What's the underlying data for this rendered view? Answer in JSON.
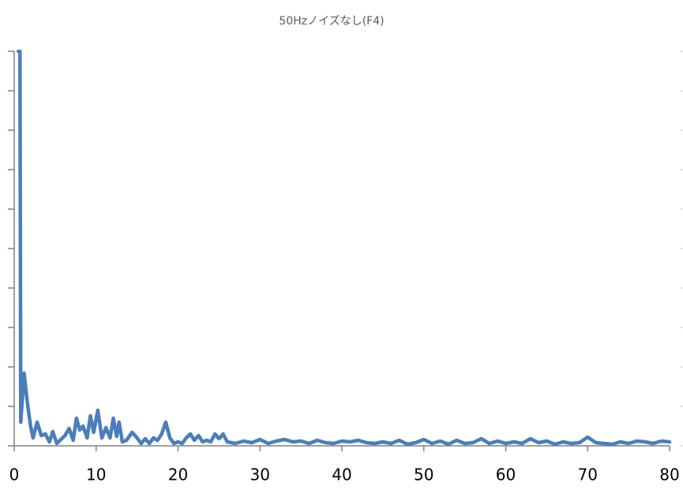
{
  "chart_data": {
    "type": "line",
    "title": "50Hzノイズなし(F4)",
    "x": [
      0.5,
      0.7,
      0.8,
      1.2,
      1.6,
      2.0,
      2.3,
      2.8,
      3.3,
      3.8,
      4.3,
      4.7,
      5.2,
      5.7,
      6.2,
      6.7,
      7.2,
      7.6,
      8.0,
      8.4,
      8.9,
      9.3,
      9.7,
      10.2,
      10.7,
      11.2,
      11.7,
      12.1,
      12.5,
      12.8,
      13.2,
      13.7,
      14.4,
      15.0,
      15.5,
      16.0,
      16.5,
      17.0,
      17.5,
      18.0,
      18.5,
      19.0,
      19.5,
      20.0,
      20.5,
      21.0,
      21.5,
      22.0,
      22.5,
      23.0,
      23.5,
      24.0,
      24.5,
      25.0,
      25.5,
      26.0,
      27,
      28,
      29,
      30,
      31,
      32,
      33,
      34,
      35,
      36,
      37,
      38,
      39,
      40,
      41,
      42,
      43,
      44,
      45,
      46,
      47,
      48,
      49,
      50,
      51,
      52,
      53,
      54,
      55,
      56,
      57,
      58,
      59,
      60,
      61,
      62,
      63,
      64,
      65,
      66,
      67,
      68,
      69,
      70,
      71,
      72,
      73,
      74,
      75,
      76,
      77,
      78,
      79,
      80
    ],
    "series": [
      {
        "name": "F4",
        "color": "#4a7ebb",
        "values": [
          10,
          10,
          0.6,
          1.84,
          1.1,
          0.5,
          0.2,
          0.6,
          0.26,
          0.3,
          0.1,
          0.36,
          0.06,
          0.16,
          0.26,
          0.44,
          0.14,
          0.7,
          0.4,
          0.5,
          0.2,
          0.76,
          0.34,
          0.9,
          0.2,
          0.46,
          0.2,
          0.7,
          0.24,
          0.6,
          0.1,
          0.14,
          0.34,
          0.2,
          0.06,
          0.18,
          0.06,
          0.2,
          0.14,
          0.3,
          0.6,
          0.2,
          0.06,
          0.1,
          0.06,
          0.2,
          0.3,
          0.14,
          0.26,
          0.1,
          0.14,
          0.1,
          0.3,
          0.18,
          0.3,
          0.1,
          0.06,
          0.12,
          0.08,
          0.16,
          0.06,
          0.12,
          0.16,
          0.1,
          0.12,
          0.06,
          0.14,
          0.08,
          0.06,
          0.12,
          0.1,
          0.14,
          0.08,
          0.06,
          0.1,
          0.06,
          0.14,
          0.04,
          0.08,
          0.16,
          0.06,
          0.12,
          0.04,
          0.14,
          0.06,
          0.08,
          0.18,
          0.06,
          0.12,
          0.06,
          0.1,
          0.06,
          0.18,
          0.08,
          0.12,
          0.04,
          0.1,
          0.06,
          0.08,
          0.22,
          0.08,
          0.06,
          0.04,
          0.1,
          0.06,
          0.12,
          0.1,
          0.06,
          0.12,
          0.1
        ]
      }
    ],
    "xlim": [
      0,
      80
    ],
    "xticks": [
      0,
      10,
      20,
      30,
      40,
      50,
      60,
      70,
      80
    ],
    "ylim": [
      0,
      10
    ],
    "yticks": [
      0,
      1,
      2,
      3,
      4,
      5,
      6,
      7,
      8,
      9,
      10
    ]
  }
}
